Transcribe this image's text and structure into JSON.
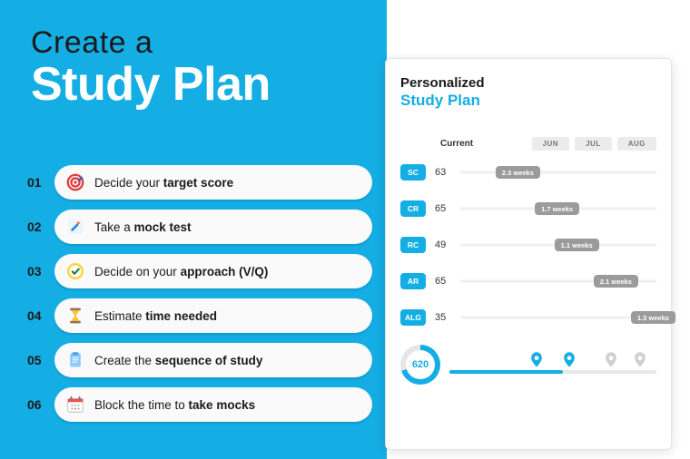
{
  "theme": {
    "brand_blue": "#14aee5",
    "bg_white": "#ffffff",
    "text_dark": "#1a1a1a",
    "chip_gray": "#9b9b9b",
    "pill_bg": "#fafafa",
    "track_light": "#efefef",
    "month_tab_bg": "#ececec",
    "inactive_pin": "#cfcfcf"
  },
  "heading": {
    "line1": "Create a",
    "line2": "Study Plan"
  },
  "steps": [
    {
      "num": "01",
      "icon": "target",
      "text_pre": "Decide your ",
      "text_bold": "target score",
      "text_post": ""
    },
    {
      "num": "02",
      "icon": "pencil",
      "text_pre": "Take a ",
      "text_bold": "mock test",
      "text_post": ""
    },
    {
      "num": "03",
      "icon": "check",
      "text_pre": "Decide on your ",
      "text_bold": "approach (V/Q)",
      "text_post": ""
    },
    {
      "num": "04",
      "icon": "hourglass",
      "text_pre": "Estimate ",
      "text_bold": "time needed",
      "text_post": ""
    },
    {
      "num": "05",
      "icon": "clipboard",
      "text_pre": "Create the ",
      "text_bold": "sequence of study",
      "text_post": ""
    },
    {
      "num": "06",
      "icon": "calendar",
      "text_pre": "Block the time to ",
      "text_bold": "take mocks",
      "text_post": ""
    }
  ],
  "panel": {
    "title_line1": "Personalized",
    "title_line2": "Study Plan",
    "current_label": "Current",
    "months": [
      "JUN",
      "JUL",
      "AUG"
    ],
    "rows": [
      {
        "tag": "SC",
        "value": "63",
        "chip": "2.3 weeks",
        "chip_pos_pct": 18
      },
      {
        "tag": "CR",
        "value": "65",
        "chip": "1.7 weeks",
        "chip_pos_pct": 38
      },
      {
        "tag": "RC",
        "value": "49",
        "chip": "1.1 weeks",
        "chip_pos_pct": 48
      },
      {
        "tag": "AR",
        "value": "65",
        "chip": "2.1 weeks",
        "chip_pos_pct": 68
      },
      {
        "tag": "ALG",
        "value": "35",
        "chip": "1.3 weeks",
        "chip_pos_pct": 87
      }
    ],
    "score_ring": {
      "value": "620",
      "fill_pct": 70
    },
    "progress": {
      "fill_pct": 55,
      "pins": [
        {
          "pos_pct": 42,
          "active": true
        },
        {
          "pos_pct": 58,
          "active": true
        },
        {
          "pos_pct": 78,
          "active": false
        },
        {
          "pos_pct": 92,
          "active": false
        }
      ]
    }
  }
}
